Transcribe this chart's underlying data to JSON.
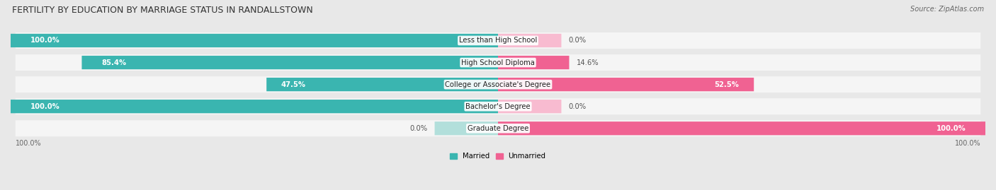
{
  "title": "FERTILITY BY EDUCATION BY MARRIAGE STATUS IN RANDALLSTOWN",
  "source": "Source: ZipAtlas.com",
  "categories": [
    "Less than High School",
    "High School Diploma",
    "College or Associate's Degree",
    "Bachelor's Degree",
    "Graduate Degree"
  ],
  "married": [
    100.0,
    85.4,
    47.5,
    100.0,
    0.0
  ],
  "unmarried": [
    0.0,
    14.6,
    52.5,
    0.0,
    100.0
  ],
  "married_color": "#3ab5b0",
  "unmarried_color": "#f06292",
  "married_color_light": "#b2dfdb",
  "unmarried_color_light": "#f8bbd0",
  "bg_color": "#e8e8e8",
  "row_bg_color": "#f5f5f5",
  "bar_height": 0.62,
  "figsize": [
    14.06,
    2.69
  ],
  "dpi": 100,
  "xlim": [
    -100,
    100
  ],
  "title_fontsize": 9,
  "label_fontsize": 7.2,
  "tick_fontsize": 7,
  "source_fontsize": 7,
  "ghost_bar_width": 13
}
